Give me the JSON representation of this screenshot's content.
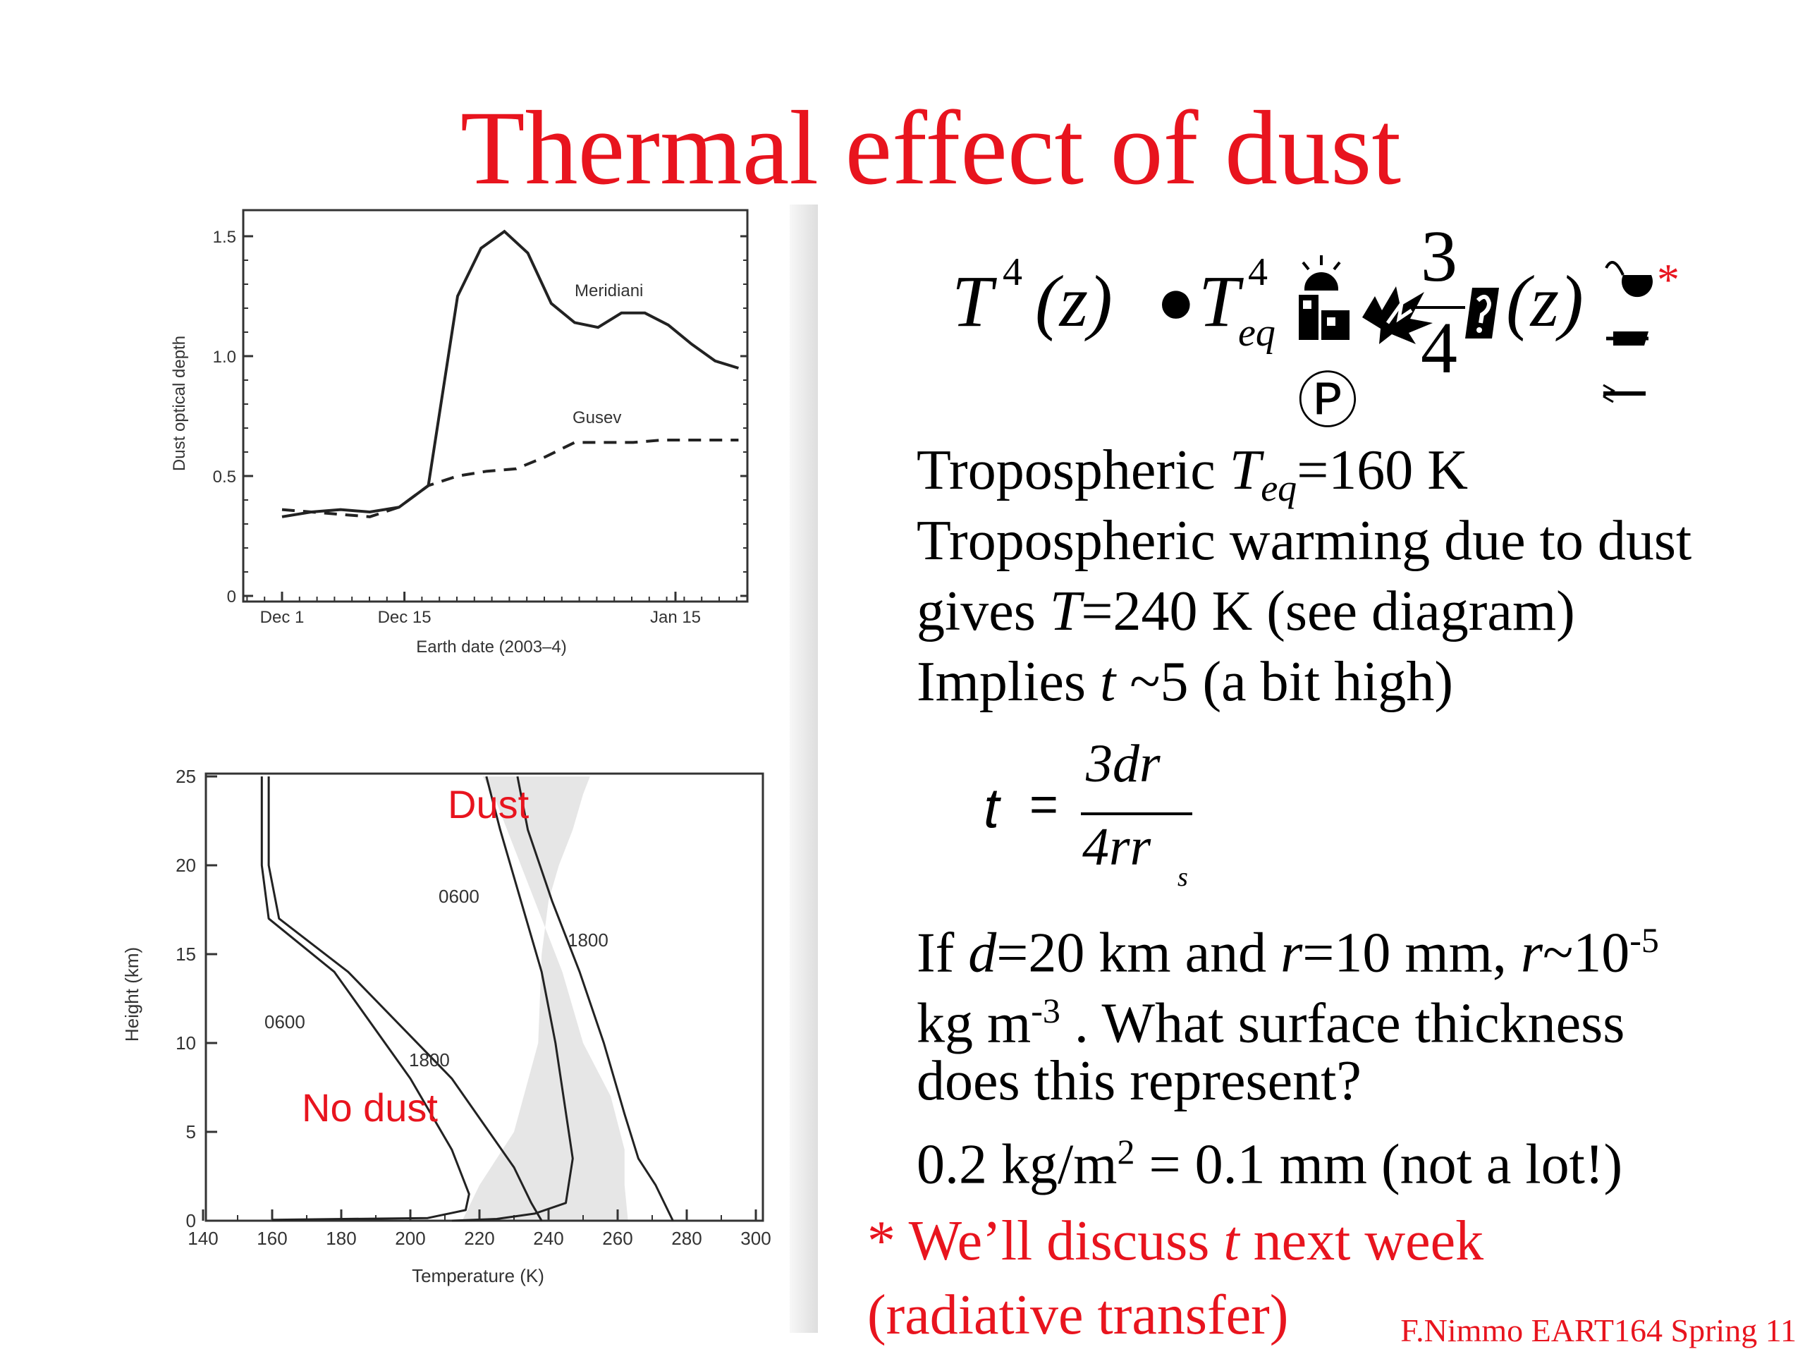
{
  "title": "Thermal effect of dust",
  "chart_data": [
    {
      "type": "line",
      "xlabel": "Earth date (2003–4)",
      "ylabel": "Dust optical depth",
      "x_ticks": [
        "Dec 1",
        "Dec 15",
        "Jan 15"
      ],
      "y_ticks": [
        "0",
        "0.5",
        "1.0",
        "1.5"
      ],
      "ylim": [
        0,
        1.55
      ],
      "grid": false,
      "series": [
        {
          "name": "Meridiani",
          "style": "solid",
          "x": [
            0,
            5,
            10,
            15,
            20,
            25,
            30,
            34,
            38,
            42,
            46,
            50,
            54,
            58,
            62,
            66,
            70,
            74,
            78
          ],
          "y": [
            0.33,
            0.35,
            0.36,
            0.35,
            0.37,
            0.46,
            1.25,
            1.45,
            1.52,
            1.43,
            1.22,
            1.14,
            1.12,
            1.18,
            1.18,
            1.13,
            1.05,
            0.98,
            0.95
          ]
        },
        {
          "name": "Gusev",
          "style": "dashed",
          "x": [
            0,
            5,
            10,
            15,
            20,
            25,
            30,
            35,
            40,
            45,
            50,
            55,
            60,
            65,
            70,
            75,
            78
          ],
          "y": [
            0.36,
            0.35,
            0.34,
            0.33,
            0.37,
            0.46,
            0.5,
            0.52,
            0.53,
            0.58,
            0.64,
            0.64,
            0.64,
            0.65,
            0.65,
            0.65,
            0.65
          ]
        }
      ]
    },
    {
      "type": "line",
      "xlabel": "Temperature (K)",
      "ylabel": "Height (km)",
      "x_ticks": [
        "140",
        "160",
        "180",
        "200",
        "220",
        "240",
        "260",
        "280",
        "300"
      ],
      "y_ticks": [
        "0",
        "5",
        "10",
        "15",
        "20",
        "25"
      ],
      "xlim": [
        140,
        300
      ],
      "ylim": [
        0,
        25
      ],
      "grid": false,
      "annotations": [
        "Dust",
        "No dust"
      ],
      "shaded_band": {
        "left": {
          "x": [
            215,
            220,
            230,
            237,
            238,
            240,
            243,
            247,
            250,
            252
          ],
          "y": [
            0,
            2,
            5,
            10,
            15,
            18,
            20,
            22,
            24,
            25
          ]
        },
        "right": {
          "x": [
            263,
            262,
            262,
            258,
            250,
            244,
            236,
            230,
            225,
            221
          ],
          "y": [
            0,
            2,
            4,
            7,
            10,
            14,
            18,
            21,
            23.5,
            25
          ]
        }
      },
      "series": [
        {
          "name": "0600",
          "x": [
            157,
            157,
            159,
            178,
            200,
            212,
            217,
            216,
            205,
            160
          ],
          "y": [
            25,
            20,
            17,
            14,
            8,
            4,
            1.5,
            0.6,
            0.15,
            0.05
          ]
        },
        {
          "name": "1800",
          "x": [
            159,
            159,
            162,
            182,
            212,
            230,
            235,
            238
          ],
          "y": [
            25,
            20,
            17,
            14,
            8,
            3,
            1,
            0
          ]
        },
        {
          "name": "0600",
          "x": [
            222,
            226,
            232,
            238,
            242,
            247,
            245,
            236,
            225,
            212
          ],
          "y": [
            25,
            22,
            18,
            14,
            10,
            3.5,
            1,
            0.4,
            0.1,
            0
          ]
        },
        {
          "name": "1800",
          "x": [
            231,
            234,
            241,
            249,
            256,
            262,
            266,
            271,
            276
          ],
          "y": [
            25,
            22,
            18,
            14,
            10,
            6,
            3.5,
            2,
            0
          ]
        }
      ],
      "curve_labels": [
        "0600",
        "1800",
        "0600",
        "1800"
      ]
    }
  ],
  "equation": {
    "lhs": "T",
    "lhs_exp": "4",
    "lhs_arg": "(z)",
    "bullet": "●",
    "teq": "T",
    "teq_exp": "4",
    "teq_sub": "eq",
    "frac_num": "3",
    "frac_den": "4",
    "tau_arg": "(z)",
    "p_symbol": "Ⓟ",
    "asterisk": "*"
  },
  "body": {
    "line1_a": "Tropospheric ",
    "line1_var": "T",
    "line1_sub": "eq",
    "line1_b": "=160 K",
    "line2": "Tropospheric warming due to dust",
    "line3_a": "gives ",
    "line3_var": "T",
    "line3_b": "=240 K (see diagram)",
    "line4_a": "Implies ",
    "line4_var": "t",
    "line4_b": " ~5 (a bit high)",
    "line5_a": "If ",
    "line5_d": "d",
    "line5_b": "=20 km and ",
    "line5_r": "r",
    "line5_c": "=10 mm, ",
    "line5_r2": "r",
    "line5_d2": "~10",
    "line5_exp": "-5",
    "line6_a": "kg m",
    "line6_exp": "-3",
    "line6_b": " . What surface thickness",
    "line7": "does this represent?",
    "line8_a": "0.2 kg/m",
    "line8_exp": "2",
    "line8_b": " = 0.1 mm (not a lot!)"
  },
  "tau_formula": {
    "lhs": "t",
    "eq": "=",
    "num": "3dr",
    "den": "4rr",
    "den_sub": "s"
  },
  "note": {
    "star": "* ",
    "a": "We’ll discuss ",
    "var": "t",
    "b": " next week",
    "line2": "(radiative transfer)"
  },
  "credit": "F.Nimmo EART164 Spring 11"
}
